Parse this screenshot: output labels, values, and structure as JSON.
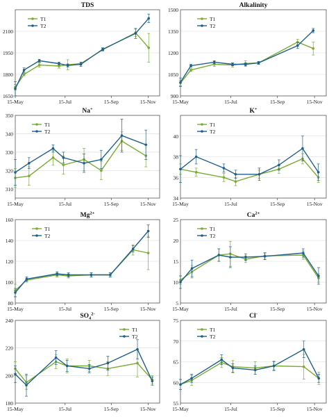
{
  "colors": {
    "T1": "#7aab32",
    "T2": "#1f5f8b",
    "grid": "#d9d9d9",
    "axis": "#555555"
  },
  "chart_data": [
    {
      "type": "line",
      "title": "TDS",
      "title_sup": "",
      "xticks": [
        "15-May",
        "15-Jul",
        "15-Sep",
        "15-Nov"
      ],
      "ylim": [
        1650,
        2250
      ],
      "yticks": [
        1650,
        1800,
        1950,
        2100
      ],
      "legend": "top-left",
      "series": [
        {
          "name": "T1",
          "x": [
            0,
            0.4,
            1.1,
            2.0,
            2.4,
            3.0,
            4.0,
            5.5,
            6.1
          ],
          "y": [
            1710,
            1800,
            1865,
            1858,
            1867,
            1875,
            1972,
            2090,
            1985
          ],
          "err": [
            20,
            10,
            15,
            15,
            35,
            10,
            10,
            25,
            100
          ]
        },
        {
          "name": "T2",
          "x": [
            0,
            0.4,
            1.1,
            2.0,
            2.4,
            3.0,
            4.0,
            5.5,
            6.1
          ],
          "y": [
            1700,
            1830,
            1895,
            1875,
            1862,
            1870,
            1975,
            2085,
            2190
          ],
          "err": [
            50,
            15,
            10,
            10,
            10,
            15,
            10,
            35,
            30
          ]
        }
      ]
    },
    {
      "type": "line",
      "title": "Alkalinity",
      "title_sup": "",
      "xticks": [
        "15-May",
        "15-Jul",
        "15-Sep",
        "15-Nov"
      ],
      "ylim": [
        900,
        1500
      ],
      "yticks": [
        900,
        1050,
        1200,
        1350,
        1500
      ],
      "legend": "top-left",
      "series": [
        {
          "name": "T1",
          "x": [
            0,
            0.4,
            1.3,
            2.0,
            2.5,
            3.0,
            4.5,
            5.1
          ],
          "y": [
            990,
            1080,
            1120,
            1115,
            1125,
            1130,
            1275,
            1230
          ],
          "err": [
            20,
            10,
            15,
            15,
            20,
            10,
            20,
            45
          ]
        },
        {
          "name": "T2",
          "x": [
            0,
            0.4,
            1.3,
            2.0,
            2.5,
            3.0,
            4.5,
            5.1
          ],
          "y": [
            995,
            1110,
            1135,
            1120,
            1120,
            1130,
            1250,
            1355
          ],
          "err": [
            30,
            10,
            10,
            10,
            10,
            10,
            20,
            15
          ]
        }
      ]
    },
    {
      "type": "line",
      "title": "Na",
      "title_sup": "+",
      "xticks": [
        "15-May",
        "15-Jul",
        "15-Sep",
        "15-Nov"
      ],
      "ylim": [
        305,
        350
      ],
      "yticks": [
        310,
        320,
        330,
        340,
        350
      ],
      "legend": "top-left",
      "series": [
        {
          "name": "T1",
          "x": [
            0,
            0.4,
            1.1,
            1.4,
            2.0,
            2.5,
            3.1,
            3.8
          ],
          "y": [
            316,
            317,
            327,
            323,
            326,
            320,
            336,
            328
          ],
          "err": [
            5,
            5,
            4,
            5,
            6,
            5,
            5,
            6
          ]
        },
        {
          "name": "T2",
          "x": [
            0,
            0.4,
            1.1,
            1.4,
            2.0,
            2.5,
            3.1,
            3.8
          ],
          "y": [
            319,
            324,
            332,
            327,
            324,
            326,
            339,
            334
          ],
          "err": [
            7,
            3,
            2,
            3,
            5,
            5,
            9,
            8
          ]
        }
      ]
    },
    {
      "type": "line",
      "title": "K",
      "title_sup": "+",
      "xticks": [
        "15-May",
        "15-Jul",
        "15-Sep",
        "15-Nov"
      ],
      "ylim": [
        34,
        42
      ],
      "yticks": [
        34,
        36,
        38,
        40
      ],
      "legend": "top-left",
      "series": [
        {
          "name": "T1",
          "x": [
            0,
            0.4,
            1.1,
            1.4,
            2.0,
            2.5,
            3.1,
            3.5
          ],
          "y": [
            36.8,
            36.5,
            36.0,
            35.6,
            36.3,
            36.8,
            37.8,
            36.0
          ],
          "err": [
            0.5,
            0.4,
            0.4,
            0.4,
            0.4,
            0.4,
            0.5,
            0.5
          ]
        },
        {
          "name": "T2",
          "x": [
            0,
            0.4,
            1.1,
            1.4,
            2.0,
            2.5,
            3.1,
            3.5
          ],
          "y": [
            36.8,
            38.0,
            36.9,
            36.3,
            36.3,
            37.2,
            38.8,
            36.5
          ],
          "err": [
            1.3,
            0.7,
            0.4,
            0.4,
            0.6,
            0.5,
            1.2,
            0.8
          ]
        }
      ]
    },
    {
      "type": "line",
      "title": "Mg",
      "title_sup": "2+",
      "xticks": [
        "15-May",
        "15-Jul",
        "15-Sep",
        "15-Nov"
      ],
      "ylim": [
        80,
        160
      ],
      "yticks": [
        80,
        100,
        120,
        140,
        160
      ],
      "legend": "top-left",
      "series": [
        {
          "name": "T1",
          "x": [
            0,
            0.3,
            1.1,
            1.4,
            2.0,
            2.5,
            3.1,
            3.5
          ],
          "y": [
            92,
            102,
            107,
            106,
            107,
            107,
            131,
            128
          ],
          "err": [
            6,
            2,
            2,
            2,
            2,
            2,
            5,
            16
          ]
        },
        {
          "name": "T2",
          "x": [
            0,
            0.3,
            1.1,
            1.4,
            2.0,
            2.5,
            3.1,
            3.5
          ],
          "y": [
            90,
            103,
            108,
            107,
            107,
            107,
            132,
            149
          ],
          "err": [
            4,
            2,
            2,
            2,
            2,
            2,
            3,
            6
          ]
        }
      ]
    },
    {
      "type": "line",
      "title": "Ca",
      "title_sup": "2+",
      "xticks": [
        "15-May",
        "15-Jul",
        "15-Sep",
        "15-Nov"
      ],
      "ylim": [
        5,
        25
      ],
      "yticks": [
        5,
        10,
        15,
        20,
        25
      ],
      "legend": "top-left",
      "series": [
        {
          "name": "T1",
          "x": [
            0,
            0.3,
            1.0,
            1.3,
            1.7,
            2.2,
            3.2,
            3.6
          ],
          "y": [
            10.5,
            12.5,
            16.5,
            16.8,
            15.5,
            16.3,
            16.5,
            11.0
          ],
          "err": [
            1.0,
            1.5,
            1.5,
            3.0,
            0.8,
            0.8,
            1.0,
            1.0
          ]
        },
        {
          "name": "T2",
          "x": [
            0,
            0.3,
            1.0,
            1.3,
            1.7,
            2.2,
            3.2,
            3.6
          ],
          "y": [
            10.0,
            13.3,
            16.5,
            16.0,
            16.0,
            16.2,
            17.0,
            11.5
          ],
          "err": [
            1.5,
            2.0,
            1.5,
            2.5,
            0.8,
            0.8,
            1.0,
            2.0
          ]
        }
      ]
    },
    {
      "type": "line",
      "title": "SO",
      "title_sub": "4",
      "title_sup": "2-",
      "xticks": [
        "15-May",
        "15-Jul",
        "15-Sep",
        "15-Nov"
      ],
      "ylim": [
        180,
        240
      ],
      "yticks": [
        180,
        200,
        220,
        240
      ],
      "legend": "top-right",
      "series": [
        {
          "name": "T1",
          "x": [
            0,
            0.3,
            1.1,
            1.4,
            2.0,
            2.5,
            3.3,
            3.7
          ],
          "y": [
            205,
            195,
            210,
            207,
            207,
            205,
            209,
            197
          ],
          "err": [
            5,
            5,
            5,
            5,
            4,
            5,
            10,
            3
          ]
        },
        {
          "name": "T2",
          "x": [
            0,
            0.3,
            1.1,
            1.4,
            2.0,
            2.5,
            3.3,
            3.7
          ],
          "y": [
            201,
            193,
            213,
            207,
            205,
            209,
            219,
            196
          ],
          "err": [
            6,
            8,
            5,
            4,
            3,
            5,
            7,
            3
          ]
        }
      ]
    },
    {
      "type": "line",
      "title": "Cl",
      "title_sup": "-",
      "xticks": [
        "15-May",
        "15-Jul",
        "15-Sep",
        "15-Nov"
      ],
      "ylim": [
        55,
        75
      ],
      "yticks": [
        55,
        60,
        65,
        70,
        75
      ],
      "legend": "top-left",
      "series": [
        {
          "name": "T1",
          "x": [
            0,
            0.3,
            1.1,
            1.4,
            2.0,
            2.5,
            3.3,
            3.7
          ],
          "y": [
            59.5,
            60.5,
            64.8,
            63.8,
            63.5,
            64.0,
            63.8,
            61.0
          ],
          "err": [
            1.2,
            1.2,
            1.2,
            1.5,
            1.5,
            1.2,
            3.0,
            1.5
          ]
        },
        {
          "name": "T2",
          "x": [
            0,
            0.3,
            1.1,
            1.4,
            2.0,
            2.5,
            3.3,
            3.7
          ],
          "y": [
            59.5,
            61.0,
            65.5,
            63.5,
            63.0,
            64.0,
            68.0,
            61.0
          ],
          "err": [
            1.2,
            1.0,
            1.2,
            1.0,
            1.0,
            1.0,
            2.0,
            1.0
          ]
        }
      ]
    }
  ]
}
